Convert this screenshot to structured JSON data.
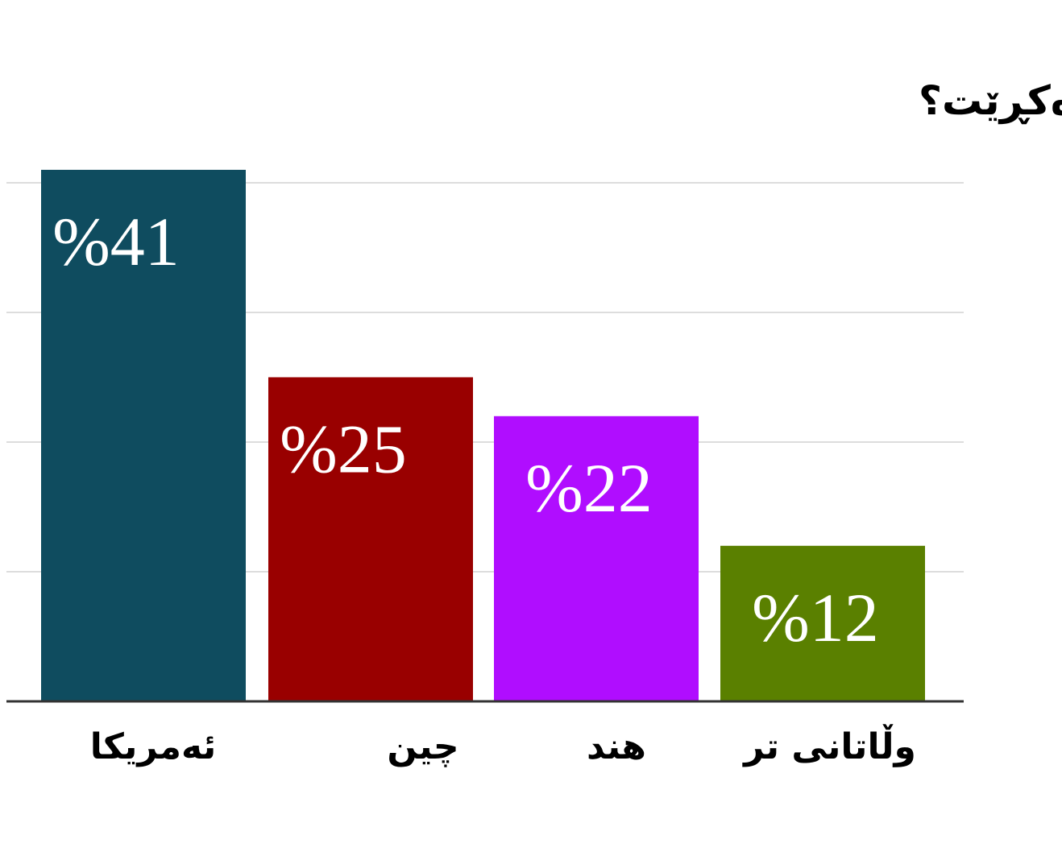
{
  "chart_data": {
    "type": "bar",
    "title": "کێ نەوتی ڤەنزوێلا دەکڕێت؟",
    "categories": [
      "ئەمریکا",
      "چین",
      "هند",
      "وڵاتانی تر"
    ],
    "values": [
      41,
      25,
      22,
      12
    ],
    "value_labels": [
      "%41",
      "%25",
      "%22",
      "%12"
    ],
    "colors": [
      "#0f4c5f",
      "#990000",
      "#b00dff",
      "#5a8000"
    ],
    "ylim": [
      0,
      40
    ],
    "gridlines": [
      0,
      10,
      20,
      30,
      40
    ],
    "grid": true,
    "xlabel": "",
    "ylabel": ""
  }
}
